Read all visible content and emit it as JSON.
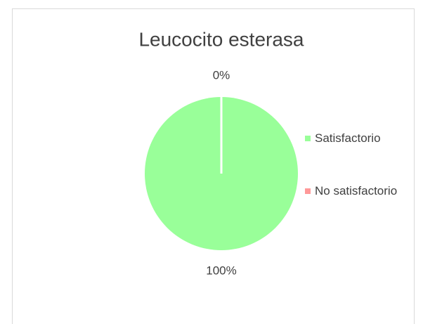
{
  "chart_data": {
    "type": "pie",
    "title": "Leucocito esterasa",
    "categories": [
      "Satisfactorio",
      "No satisfactorio"
    ],
    "values": [
      100,
      0
    ],
    "value_labels": [
      "100%",
      "0%"
    ],
    "colors": [
      "#99ff99",
      "#ff9999"
    ],
    "legend": "right"
  }
}
